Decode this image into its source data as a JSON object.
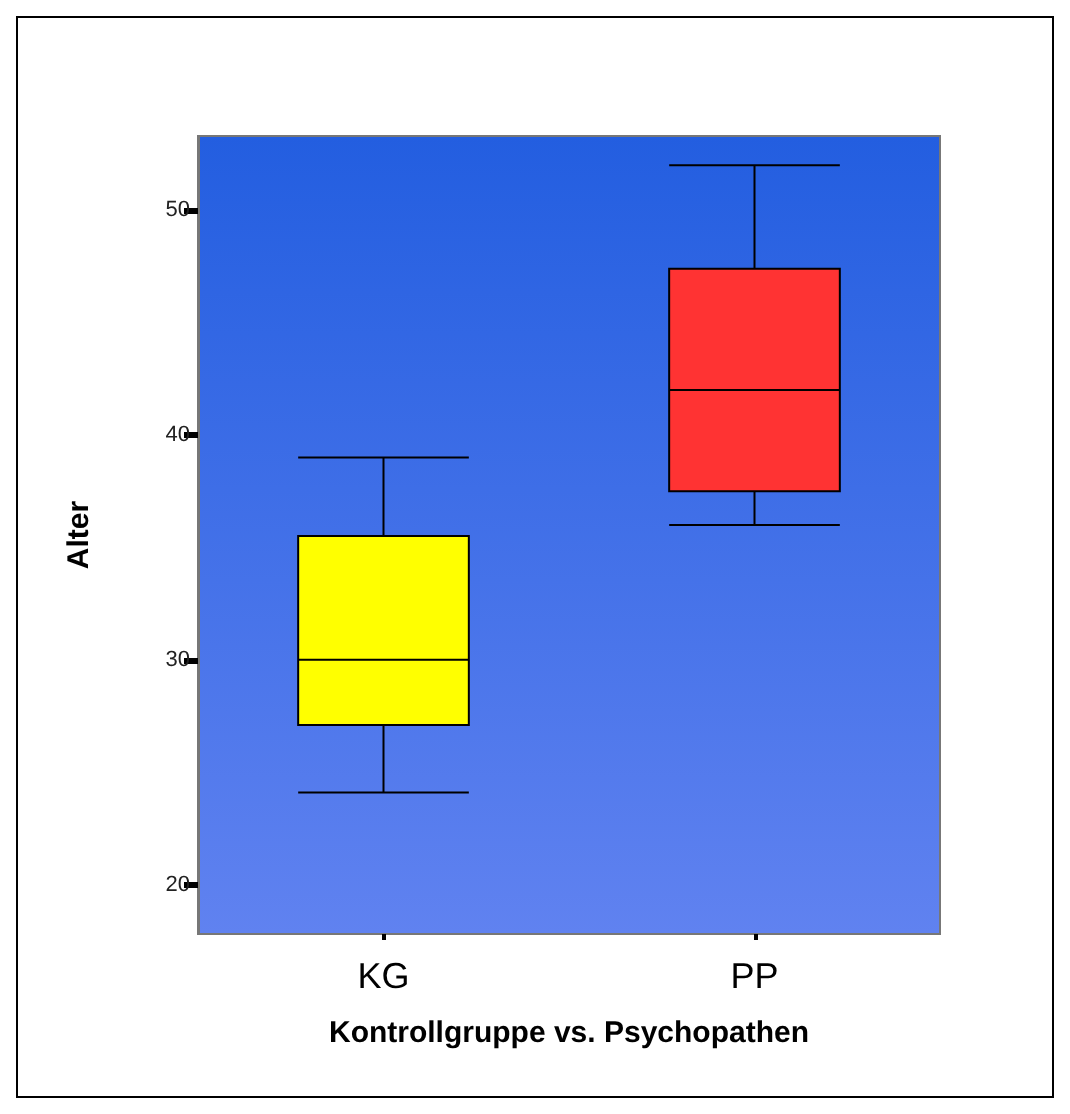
{
  "chart_data": {
    "type": "box",
    "xlabel": "Kontrollgruppe vs. Psychopathen",
    "ylabel": "Alter",
    "categories": [
      "KG",
      "PP"
    ],
    "boxes": [
      {
        "low": 24.1,
        "q1": 27.1,
        "median": 30,
        "q3": 35.5,
        "high": 39
      },
      {
        "low": 36,
        "q1": 37.5,
        "median": 42,
        "q3": 47.4,
        "high": 52
      }
    ],
    "colors": [
      "#ffff00",
      "#ff3333"
    ],
    "ylim": [
      17.8,
      53.3
    ],
    "yticks": [
      20,
      30,
      40,
      50
    ],
    "grid": false
  }
}
